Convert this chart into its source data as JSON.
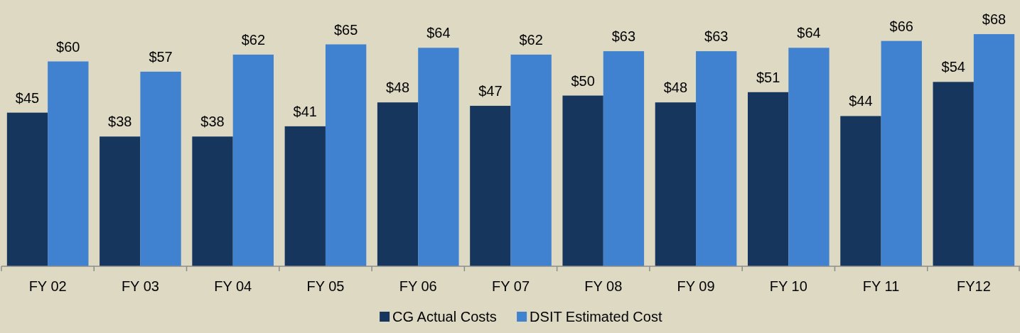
{
  "chart_data": {
    "type": "bar",
    "categories": [
      "FY 02",
      "FY 03",
      "FY 04",
      "FY 05",
      "FY 06",
      "FY 07",
      "FY 08",
      "FY 09",
      "FY 10",
      "FY 11",
      "FY12"
    ],
    "series": [
      {
        "name": "CG Actual Costs",
        "color": "#17365d",
        "values": [
          45,
          38,
          38,
          41,
          48,
          47,
          50,
          48,
          51,
          44,
          54
        ],
        "value_labels": [
          "$45",
          "$38",
          "$38",
          "$41",
          "$48",
          "$47",
          "$50",
          "$48",
          "$51",
          "$44",
          "$54"
        ]
      },
      {
        "name": "DSIT Estimated Cost",
        "color": "#4081d0",
        "values": [
          60,
          57,
          62,
          65,
          64,
          62,
          63,
          63,
          64,
          66,
          68
        ],
        "value_labels": [
          "$60",
          "$57",
          "$62",
          "$65",
          "$64",
          "$62",
          "$63",
          "$63",
          "$64",
          "$66",
          "$68"
        ]
      }
    ],
    "ylim": [
      0,
      78
    ],
    "grid": false,
    "legend": "bottom"
  }
}
